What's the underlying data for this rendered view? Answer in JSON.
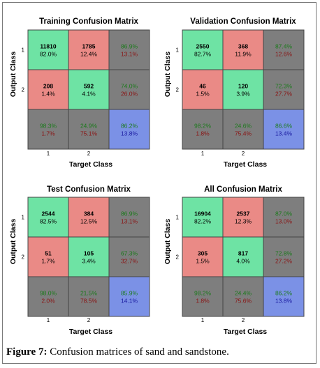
{
  "colors": {
    "correct": "#6ee3a4",
    "incorrect": "#ea8a86",
    "summary": "#7e7e7e",
    "overall": "#7b91e6",
    "grid": "#444444",
    "green_text": "#1c7a1c",
    "red_text": "#8a1414",
    "blue_text": "#1a1aa0"
  },
  "caption": {
    "label": "Figure 7:",
    "text": " Confusion matrices of sand and sandstone."
  },
  "chart_data": [
    {
      "type": "table",
      "title": "Training Confusion Matrix",
      "xlabel": "Target Class",
      "ylabel": "Output Class",
      "x_ticks": [
        "1",
        "2"
      ],
      "y_ticks": [
        "1",
        "2"
      ],
      "cells": [
        [
          [
            "11810",
            "82.0%"
          ],
          [
            "1785",
            "12.4%"
          ],
          [
            "86.9%",
            "13.1%"
          ]
        ],
        [
          [
            "208",
            "1.4%"
          ],
          [
            "592",
            "4.1%"
          ],
          [
            "74.0%",
            "26.0%"
          ]
        ],
        [
          [
            "98.3%",
            "1.7%"
          ],
          [
            "24.9%",
            "75.1%"
          ],
          [
            "86.2%",
            "13.8%"
          ]
        ]
      ]
    },
    {
      "type": "table",
      "title": "Validation Confusion Matrix",
      "xlabel": "Target Class",
      "ylabel": "Output Class",
      "x_ticks": [
        "1",
        "2"
      ],
      "y_ticks": [
        "1",
        "2"
      ],
      "cells": [
        [
          [
            "2550",
            "82.7%"
          ],
          [
            "368",
            "11.9%"
          ],
          [
            "87.4%",
            "12.6%"
          ]
        ],
        [
          [
            "46",
            "1.5%"
          ],
          [
            "120",
            "3.9%"
          ],
          [
            "72.3%",
            "27.7%"
          ]
        ],
        [
          [
            "98.2%",
            "1.8%"
          ],
          [
            "24.6%",
            "75.4%"
          ],
          [
            "86.6%",
            "13.4%"
          ]
        ]
      ]
    },
    {
      "type": "table",
      "title": "Test Confusion Matrix",
      "xlabel": "Target Class",
      "ylabel": "Output Class",
      "x_ticks": [
        "1",
        "2"
      ],
      "y_ticks": [
        "1",
        "2"
      ],
      "cells": [
        [
          [
            "2544",
            "82.5%"
          ],
          [
            "384",
            "12.5%"
          ],
          [
            "86.9%",
            "13.1%"
          ]
        ],
        [
          [
            "51",
            "1.7%"
          ],
          [
            "105",
            "3.4%"
          ],
          [
            "67.3%",
            "32.7%"
          ]
        ],
        [
          [
            "98.0%",
            "2.0%"
          ],
          [
            "21.5%",
            "78.5%"
          ],
          [
            "85.9%",
            "14.1%"
          ]
        ]
      ]
    },
    {
      "type": "table",
      "title": "All Confusion Matrix",
      "xlabel": "Target Class",
      "ylabel": "Output Class",
      "x_ticks": [
        "1",
        "2"
      ],
      "y_ticks": [
        "1",
        "2"
      ],
      "cells": [
        [
          [
            "16904",
            "82.2%"
          ],
          [
            "2537",
            "12.3%"
          ],
          [
            "87.0%",
            "13.0%"
          ]
        ],
        [
          [
            "305",
            "1.5%"
          ],
          [
            "817",
            "4.0%"
          ],
          [
            "72.8%",
            "27.2%"
          ]
        ],
        [
          [
            "98.2%",
            "1.8%"
          ],
          [
            "24.4%",
            "75.6%"
          ],
          [
            "86.2%",
            "13.8%"
          ]
        ]
      ]
    }
  ]
}
